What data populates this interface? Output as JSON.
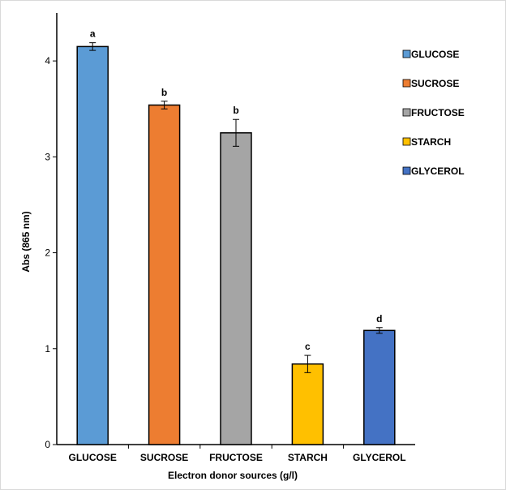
{
  "chart_data": {
    "type": "bar",
    "categories": [
      "GLUCOSE",
      "SUCROSE",
      "FRUCTOSE",
      "STARCH",
      "GLYCEROL"
    ],
    "values": [
      4.15,
      3.54,
      3.25,
      0.84,
      1.19
    ],
    "errors": [
      0.04,
      0.04,
      0.14,
      0.09,
      0.03
    ],
    "significance": [
      "a",
      "b",
      "b",
      "c",
      "d"
    ],
    "colors": [
      "#5b9bd5",
      "#ed7d31",
      "#a5a5a5",
      "#ffc000",
      "#4472c4"
    ],
    "title": "",
    "xlabel": "Electron donor  sources (g/l)",
    "ylabel": "Abs (865 nm)",
    "ylim": [
      0,
      4.5
    ],
    "yticks": [
      "0",
      "1",
      "2",
      "3",
      "4"
    ],
    "grid": false,
    "legend_position": "top-right",
    "legend": [
      "GLUCOSE",
      "SUCROSE",
      "FRUCTOSE",
      "STARCH",
      "GLYCEROL"
    ]
  }
}
